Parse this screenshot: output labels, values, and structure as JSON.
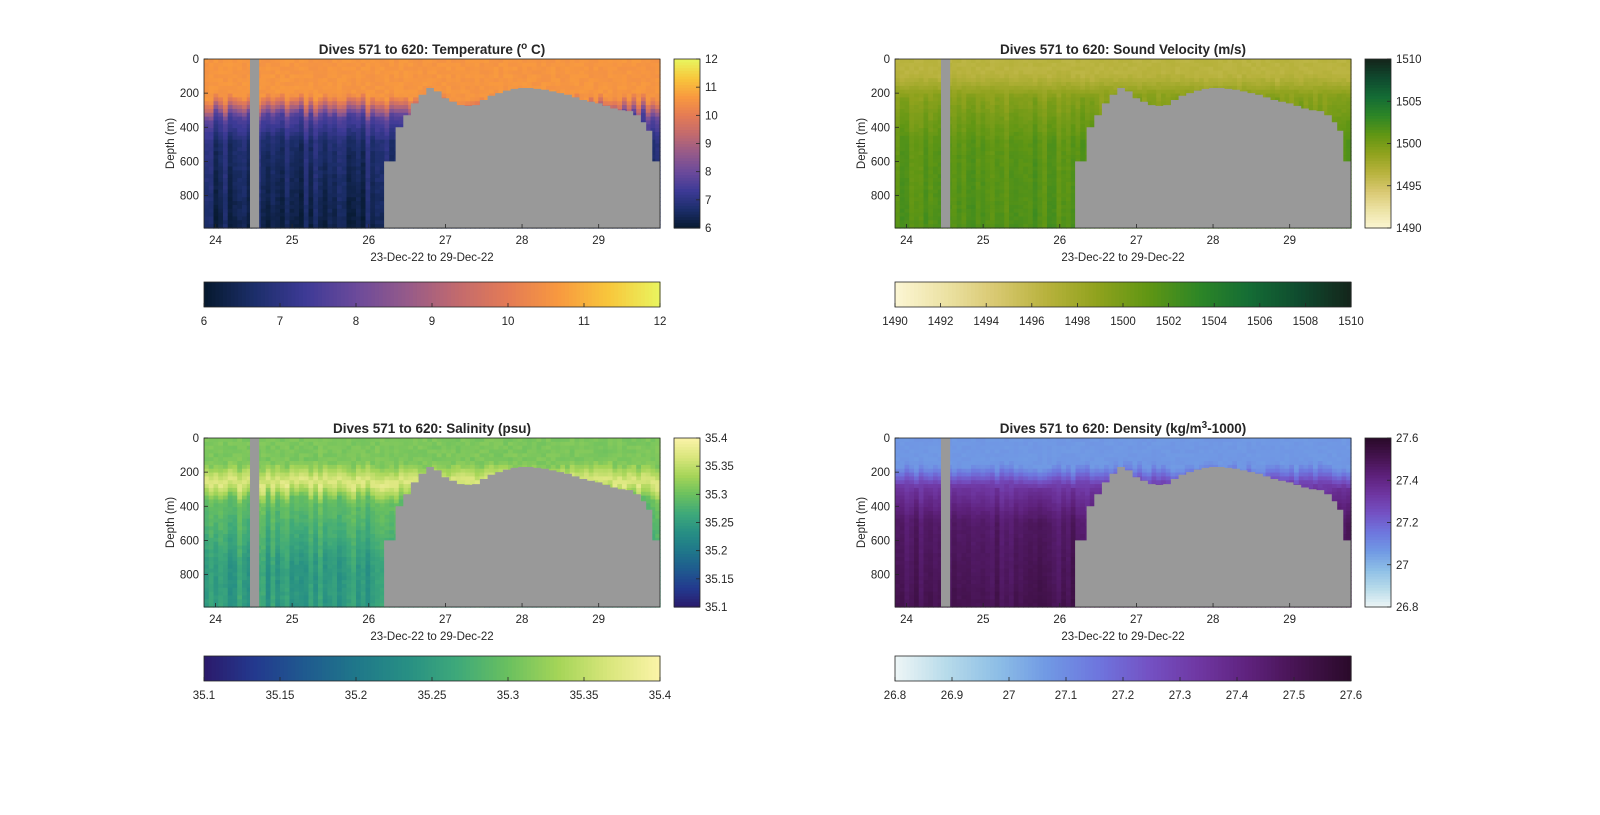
{
  "chart_data": [
    {
      "type": "heatmap",
      "title": "Dives 571 to 620: Temperature (",
      "title_sup": "o",
      "title_end": " C)",
      "ylabel": "Depth (m)",
      "xlabel": "23-Dec-22 to 29-Dec-22",
      "x_ticks": [
        "24",
        "25",
        "26",
        "27",
        "28",
        "29"
      ],
      "x_range": [
        23.85,
        29.8
      ],
      "y_ticks": [
        "0",
        "200",
        "400",
        "600",
        "800"
      ],
      "y_range": [
        0,
        990
      ],
      "colorbar_ticks": [
        "6",
        "7",
        "8",
        "9",
        "10",
        "11",
        "12"
      ],
      "horizontal_colorbar_ticks": [
        "6",
        "7",
        "8",
        "9",
        "10",
        "11",
        "12"
      ],
      "clim": [
        6,
        12
      ],
      "colormap": [
        "#06192e",
        "#1c2e6a",
        "#3d3a96",
        "#6b4a9b",
        "#955a8a",
        "#c26a6e",
        "#e47b55",
        "#f8993f",
        "#f8c73c",
        "#e9f55f"
      ],
      "surface_value": 10.6,
      "deep_value": 7.2,
      "thermocline_depth": 280,
      "surface_noise": 0.2,
      "deep_noise": 0.35
    },
    {
      "type": "heatmap",
      "title": "Dives 571 to 620: Sound Velocity (m/s)",
      "title_sup": "",
      "title_end": "",
      "ylabel": "Depth (m)",
      "xlabel": "23-Dec-22 to 29-Dec-22",
      "x_ticks": [
        "24",
        "25",
        "26",
        "27",
        "28",
        "29"
      ],
      "x_range": [
        23.85,
        29.8
      ],
      "y_ticks": [
        "0",
        "200",
        "400",
        "600",
        "800"
      ],
      "y_range": [
        0,
        990
      ],
      "colorbar_ticks": [
        "1490",
        "1495",
        "1500",
        "1505",
        "1510"
      ],
      "horizontal_colorbar_ticks": [
        "1490",
        "1492",
        "1494",
        "1496",
        "1498",
        "1500",
        "1502",
        "1504",
        "1506",
        "1508",
        "1510"
      ],
      "clim": [
        1490,
        1510
      ],
      "colormap": [
        "#fcf6d4",
        "#ece2a4",
        "#d8c870",
        "#b7b23c",
        "#8fa21d",
        "#609614",
        "#2d8626",
        "#146c35",
        "#0f4a2e",
        "#14251b"
      ],
      "surface_value": 1496.5,
      "deep_value": 1500.8,
      "thermocline_depth": 150,
      "surface_noise": 0.5,
      "deep_noise": 0.7
    },
    {
      "type": "heatmap",
      "title": "Dives 571 to 620: Salinity (psu)",
      "title_sup": "",
      "title_end": "",
      "ylabel": "Depth (m)",
      "xlabel": "23-Dec-22 to 29-Dec-22",
      "x_ticks": [
        "24",
        "25",
        "26",
        "27",
        "28",
        "29"
      ],
      "x_range": [
        23.85,
        29.8
      ],
      "y_ticks": [
        "0",
        "200",
        "400",
        "600",
        "800"
      ],
      "y_range": [
        0,
        990
      ],
      "colorbar_ticks": [
        "35.1",
        "35.15",
        "35.2",
        "35.25",
        "35.3",
        "35.35",
        "35.4"
      ],
      "horizontal_colorbar_ticks": [
        "35.1",
        "35.15",
        "35.2",
        "35.25",
        "35.3",
        "35.35",
        "35.4"
      ],
      "clim": [
        35.1,
        35.4
      ],
      "colormap": [
        "#2b1a6b",
        "#23398e",
        "#1f5a8f",
        "#1f778a",
        "#278f84",
        "#3ea97a",
        "#6ac05f",
        "#a5d558",
        "#d9e67c",
        "#fbf3a8"
      ],
      "surface_value": 35.31,
      "peak_value": 35.375,
      "deep_value": 35.25,
      "thermocline_depth": 260,
      "surface_noise": 0.012,
      "deep_noise": 0.02
    },
    {
      "type": "heatmap",
      "title": "Dives 571 to 620: Density (kg/m",
      "title_sup": "3",
      "title_end": "-1000)",
      "ylabel": "Depth (m)",
      "xlabel": "23-Dec-22 to 29-Dec-22",
      "x_ticks": [
        "24",
        "25",
        "26",
        "27",
        "28",
        "29"
      ],
      "x_range": [
        23.85,
        29.8
      ],
      "y_ticks": [
        "0",
        "200",
        "400",
        "600",
        "800"
      ],
      "y_range": [
        0,
        990
      ],
      "colorbar_ticks": [
        "26.8",
        "27",
        "27.2",
        "27.4",
        "27.6"
      ],
      "horizontal_colorbar_ticks": [
        "26.8",
        "26.9",
        "27",
        "27.1",
        "27.2",
        "27.3",
        "27.4",
        "27.5",
        "27.6"
      ],
      "clim": [
        26.8,
        27.6
      ],
      "colormap": [
        "#eef6f6",
        "#b8dbea",
        "#8ebfe6",
        "#7099e4",
        "#6e76de",
        "#7452c4",
        "#6f37a2",
        "#5e217c",
        "#45134f",
        "#2a0a2a"
      ],
      "surface_value": 27.07,
      "deep_value": 27.42,
      "thermocline_depth": 220,
      "surface_noise": 0.015,
      "deep_noise": 0.03
    }
  ],
  "shared": {
    "nodata_color": "#999999",
    "gap_band_x": [
      24.45,
      24.57
    ],
    "seafloor": {
      "x": [
        26.2,
        26.3,
        26.35,
        26.45,
        26.55,
        26.65,
        26.75,
        26.85,
        26.95,
        27.05,
        27.15,
        27.25,
        27.35,
        27.45,
        27.55,
        27.65,
        27.75,
        27.85,
        27.95,
        28.05,
        28.15,
        28.25,
        28.35,
        28.45,
        28.55,
        28.65,
        28.75,
        28.85,
        28.95,
        29.05,
        29.15,
        29.25,
        29.35,
        29.45,
        29.55,
        29.62,
        29.7,
        29.8
      ],
      "depth": [
        600,
        600,
        400,
        330,
        260,
        210,
        170,
        190,
        230,
        250,
        270,
        275,
        270,
        240,
        215,
        200,
        185,
        175,
        170,
        170,
        175,
        180,
        190,
        200,
        210,
        225,
        240,
        250,
        260,
        275,
        290,
        300,
        305,
        330,
        370,
        420,
        600,
        600
      ]
    }
  }
}
